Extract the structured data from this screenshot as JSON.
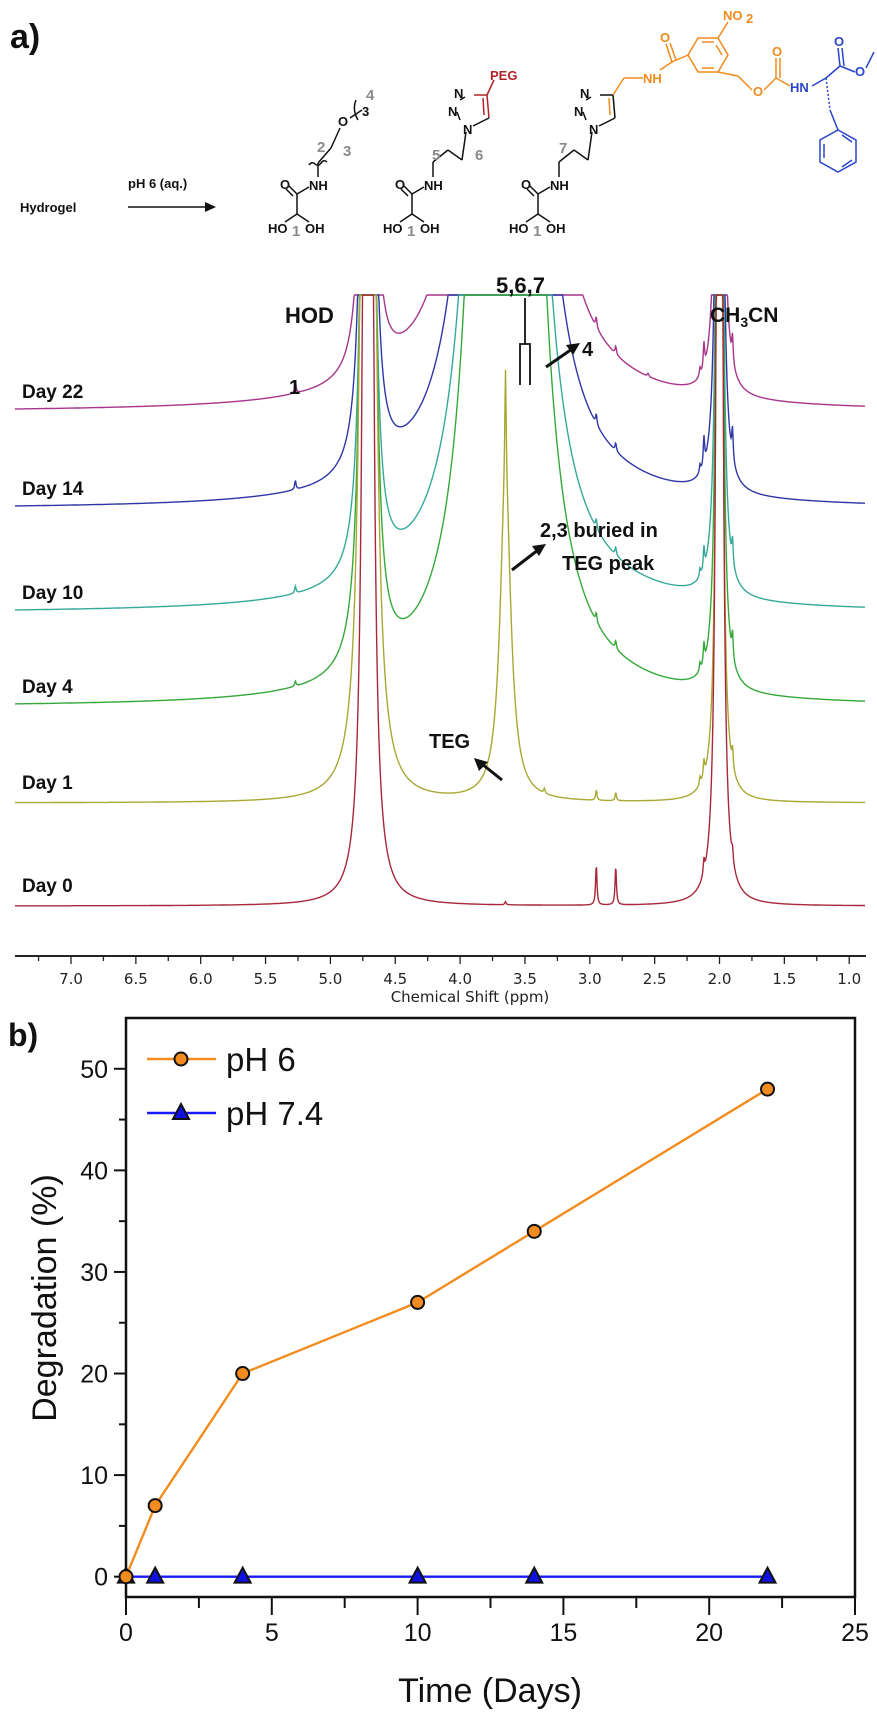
{
  "panel_a": {
    "label": "a)",
    "scheme": {
      "start": "Hydrogel",
      "condition": "pH 6 (aq.)",
      "atoms": {
        "ho": "HO",
        "oh": "OH",
        "o": "O",
        "nh": "NH",
        "hn": "HN",
        "n": "N",
        "peg": "PEG",
        "no2": "NO",
        "no2_sub": "2",
        "sub3": "3"
      },
      "positions": {
        "p1": "1",
        "p2": "2",
        "p3": "3",
        "p4": "4",
        "p5": "5",
        "p6": "6",
        "p7": "7"
      },
      "colors": {
        "black": "#111111",
        "grey": "#8a8a8a",
        "peg": "#b0242a",
        "linker": "#f08a1c",
        "amino_acid": "#2a46c8"
      }
    },
    "annotations": {
      "hod": "HOD",
      "peak1": "1",
      "peaks567": "5,6,7",
      "peak4": "4",
      "ch3cn": "CH",
      "ch3cn_sub": "3",
      "ch3cn_tail": "CN",
      "buried_line1": "2,3 buried in",
      "buried_line2": "TEG peak",
      "teg": "TEG"
    }
  },
  "panel_b": {
    "label": "b)"
  },
  "chart_data": [
    {
      "type": "line",
      "title": "",
      "xlabel": "Chemical Shift (ppm)",
      "ylabel": "",
      "xlim": [
        7.45,
        0.8
      ],
      "x_reversed": true,
      "xticks": [
        "7.0",
        "6.5",
        "6.0",
        "5.5",
        "5.0",
        "4.5",
        "4.0",
        "3.5",
        "3.0",
        "2.5",
        "2.0",
        "1.5",
        "1.0"
      ],
      "series": [
        {
          "name": "Day 22",
          "color": "#a8358a"
        },
        {
          "name": "Day 14",
          "color": "#2f36a8"
        },
        {
          "name": "Day 10",
          "color": "#36a89a"
        },
        {
          "name": "Day 4",
          "color": "#35a83a"
        },
        {
          "name": "Day 1",
          "color": "#a8a832"
        },
        {
          "name": "Day 0",
          "color": "#a8283a"
        }
      ],
      "peaks_ppm": {
        "HOD": 4.7,
        "TEG": 3.65,
        "peak_1": 5.27,
        "peak_4": 3.35,
        "CH3CN": 2.0
      }
    },
    {
      "type": "line",
      "title": "",
      "xlabel": "Time (Days)",
      "ylabel": "Degradation (%)",
      "xlim": [
        0,
        25
      ],
      "ylim": [
        -2,
        55
      ],
      "xticks": [
        "0",
        "5",
        "10",
        "15",
        "20",
        "25"
      ],
      "yticks": [
        "0",
        "10",
        "20",
        "30",
        "40",
        "50"
      ],
      "grid": false,
      "legend": "top-left",
      "series": [
        {
          "name": "pH 6",
          "color": "#f28c1e",
          "marker": "circle",
          "x": [
            0,
            1,
            4,
            10,
            14,
            22
          ],
          "y": [
            0,
            7,
            20,
            27,
            34,
            48
          ]
        },
        {
          "name": "pH 7.4",
          "color": "#1a1aff",
          "marker": "triangle",
          "x": [
            0,
            1,
            4,
            10,
            14,
            22
          ],
          "y": [
            0,
            0,
            0,
            0,
            0,
            0
          ]
        }
      ]
    }
  ]
}
